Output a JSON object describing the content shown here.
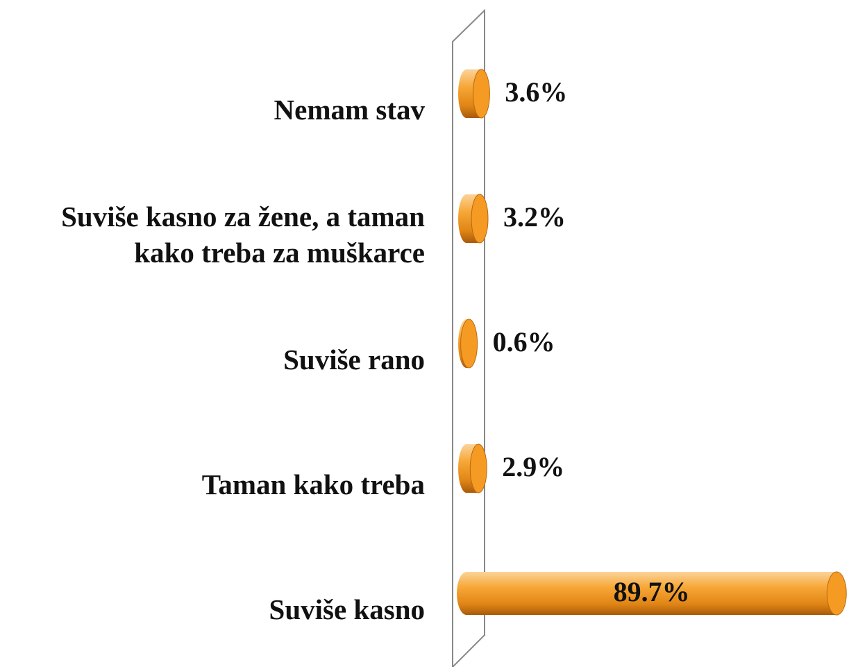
{
  "chart_data": {
    "type": "bar",
    "orientation": "horizontal",
    "categories": [
      "Nemam stav",
      "Suviše kasno za žene, a taman kako treba za muškarce",
      "Suviše rano",
      "Taman kako treba",
      "Suviše kasno"
    ],
    "values": [
      3.6,
      3.2,
      0.6,
      2.9,
      89.7
    ],
    "value_labels": [
      "3.6%",
      "3.2%",
      "0.6%",
      "2.9%",
      "89.7%"
    ],
    "color": "#f59a23",
    "xlim": [
      0,
      90
    ]
  }
}
